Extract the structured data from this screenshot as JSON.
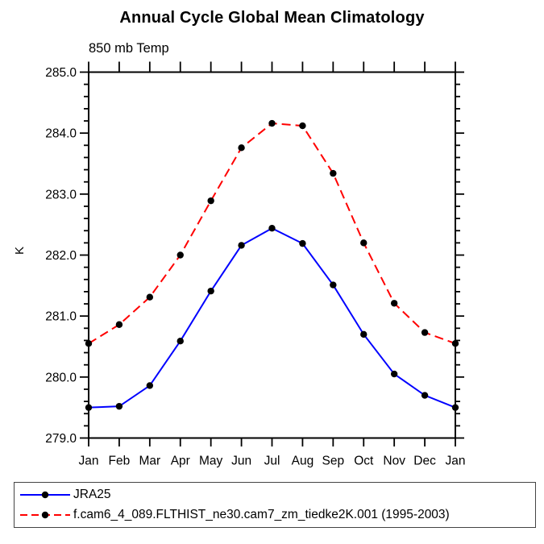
{
  "page": {
    "background": "#ffffff"
  },
  "chart_data": {
    "type": "line",
    "title": "Annual Cycle Global Mean Climatology",
    "subtitle": "850 mb Temp",
    "ylabel": "K",
    "xlabel": "",
    "categories": [
      "Jan",
      "Feb",
      "Mar",
      "Apr",
      "May",
      "Jun",
      "Jul",
      "Aug",
      "Sep",
      "Oct",
      "Nov",
      "Dec",
      "Jan"
    ],
    "ylim": [
      279.0,
      285.0
    ],
    "ytick_step": 1.0,
    "ytick_minor_step": 0.2,
    "ytick_labels": [
      "279.0",
      "280.0",
      "281.0",
      "282.0",
      "283.0",
      "284.0",
      "285.0"
    ],
    "grid": false,
    "frame_color": "#000000",
    "legend_position": "below-plot-left",
    "series": [
      {
        "name": "JRA25",
        "color": "#0000ff",
        "line_style": "solid",
        "marker": "filled-circle",
        "marker_color": "#000000",
        "values": [
          279.5,
          279.52,
          279.86,
          280.59,
          281.41,
          282.16,
          282.44,
          282.19,
          281.51,
          280.7,
          280.05,
          279.7,
          279.5
        ]
      },
      {
        "name": "f.cam6_4_089.FLTHIST_ne30.cam7_zm_tiedke2K.001 (1995-2003)",
        "color": "#ff0000",
        "line_style": "dashed",
        "marker": "filled-circle",
        "marker_color": "#000000",
        "values": [
          280.55,
          280.86,
          281.31,
          282.0,
          282.89,
          283.76,
          284.16,
          284.12,
          283.34,
          282.2,
          281.21,
          280.73,
          280.55
        ]
      }
    ]
  }
}
